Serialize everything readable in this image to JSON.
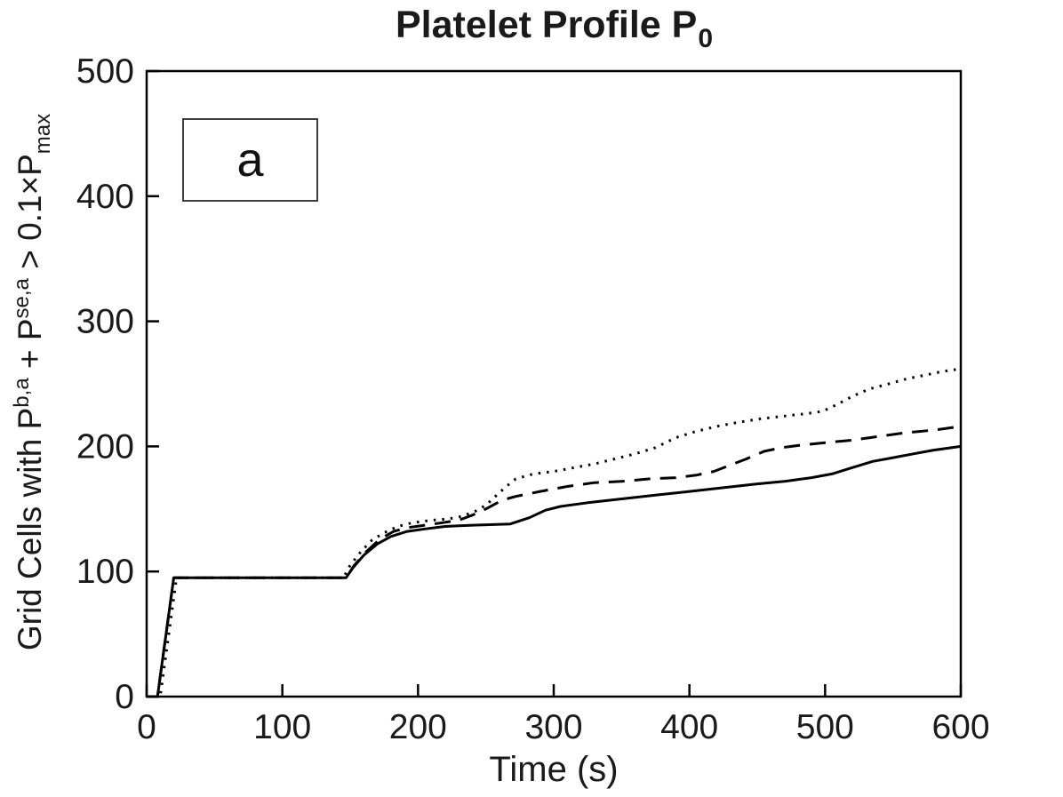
{
  "chart": {
    "title_main": "Platelet Profile P",
    "title_sub": "0",
    "xlabel": "Time (s)",
    "ylabel_parts": [
      {
        "text": "Grid Cells with P"
      },
      {
        "sup": "b,a"
      },
      {
        "text": " + P"
      },
      {
        "sup": "se,a"
      },
      {
        "text": " > 0.1×P"
      },
      {
        "sub": "max"
      }
    ],
    "annotation_label": "a"
  },
  "chart_data": {
    "type": "line",
    "title": "Platelet Profile P_0",
    "xlabel": "Time (s)",
    "ylabel": "Grid Cells with P^{b,a} + P^{se,a} > 0.1×P_{max}",
    "xlim": [
      0,
      600
    ],
    "ylim": [
      0,
      500
    ],
    "xticks": [
      0,
      100,
      200,
      300,
      400,
      500,
      600
    ],
    "yticks": [
      0,
      100,
      200,
      300,
      400,
      500
    ],
    "grid": false,
    "legend": "none",
    "annotation_label": "a",
    "line_color": "#000000",
    "series": [
      {
        "name": "dotted",
        "style": "dotted",
        "color": "#000000",
        "points": [
          [
            0,
            0
          ],
          [
            10,
            0
          ],
          [
            22,
            95
          ],
          [
            145,
            95
          ],
          [
            150,
            105
          ],
          [
            158,
            116
          ],
          [
            166,
            125
          ],
          [
            175,
            131
          ],
          [
            185,
            136
          ],
          [
            196,
            139
          ],
          [
            210,
            141
          ],
          [
            222,
            142
          ],
          [
            232,
            144
          ],
          [
            242,
            148
          ],
          [
            250,
            153
          ],
          [
            258,
            161
          ],
          [
            265,
            168
          ],
          [
            272,
            174
          ],
          [
            285,
            178
          ],
          [
            300,
            180
          ],
          [
            315,
            183
          ],
          [
            330,
            186
          ],
          [
            345,
            190
          ],
          [
            360,
            194
          ],
          [
            375,
            199
          ],
          [
            390,
            207
          ],
          [
            405,
            212
          ],
          [
            420,
            216
          ],
          [
            435,
            219
          ],
          [
            452,
            222
          ],
          [
            468,
            224
          ],
          [
            485,
            226
          ],
          [
            498,
            228
          ],
          [
            508,
            233
          ],
          [
            520,
            240
          ],
          [
            533,
            246
          ],
          [
            547,
            250
          ],
          [
            560,
            254
          ],
          [
            574,
            257
          ],
          [
            587,
            260
          ],
          [
            600,
            262
          ]
        ]
      },
      {
        "name": "dashed",
        "style": "dashed",
        "color": "#000000",
        "points": [
          [
            0,
            0
          ],
          [
            8,
            0
          ],
          [
            20,
            95
          ],
          [
            147,
            95
          ],
          [
            153,
            105
          ],
          [
            162,
            116
          ],
          [
            172,
            126
          ],
          [
            182,
            132
          ],
          [
            192,
            135
          ],
          [
            205,
            137
          ],
          [
            218,
            139
          ],
          [
            230,
            141
          ],
          [
            240,
            145
          ],
          [
            250,
            150
          ],
          [
            262,
            157
          ],
          [
            272,
            160
          ],
          [
            290,
            164
          ],
          [
            310,
            168
          ],
          [
            330,
            171
          ],
          [
            350,
            172
          ],
          [
            370,
            174
          ],
          [
            390,
            175
          ],
          [
            405,
            177
          ],
          [
            418,
            180
          ],
          [
            430,
            185
          ],
          [
            442,
            190
          ],
          [
            455,
            196
          ],
          [
            468,
            199
          ],
          [
            482,
            201
          ],
          [
            500,
            203
          ],
          [
            520,
            205
          ],
          [
            540,
            208
          ],
          [
            560,
            211
          ],
          [
            580,
            213
          ],
          [
            600,
            216
          ]
        ]
      },
      {
        "name": "solid",
        "style": "solid",
        "color": "#000000",
        "points": [
          [
            0,
            0
          ],
          [
            8,
            0
          ],
          [
            20,
            95
          ],
          [
            147,
            95
          ],
          [
            152,
            103
          ],
          [
            160,
            113
          ],
          [
            170,
            122
          ],
          [
            180,
            128
          ],
          [
            192,
            132
          ],
          [
            205,
            134
          ],
          [
            220,
            136
          ],
          [
            240,
            137
          ],
          [
            268,
            138
          ],
          [
            282,
            143
          ],
          [
            294,
            149
          ],
          [
            305,
            152
          ],
          [
            325,
            155
          ],
          [
            350,
            158
          ],
          [
            375,
            161
          ],
          [
            400,
            164
          ],
          [
            425,
            167
          ],
          [
            450,
            170
          ],
          [
            470,
            172
          ],
          [
            490,
            175
          ],
          [
            505,
            178
          ],
          [
            520,
            183
          ],
          [
            535,
            188
          ],
          [
            550,
            191
          ],
          [
            565,
            194
          ],
          [
            580,
            197
          ],
          [
            600,
            200
          ]
        ]
      }
    ]
  }
}
